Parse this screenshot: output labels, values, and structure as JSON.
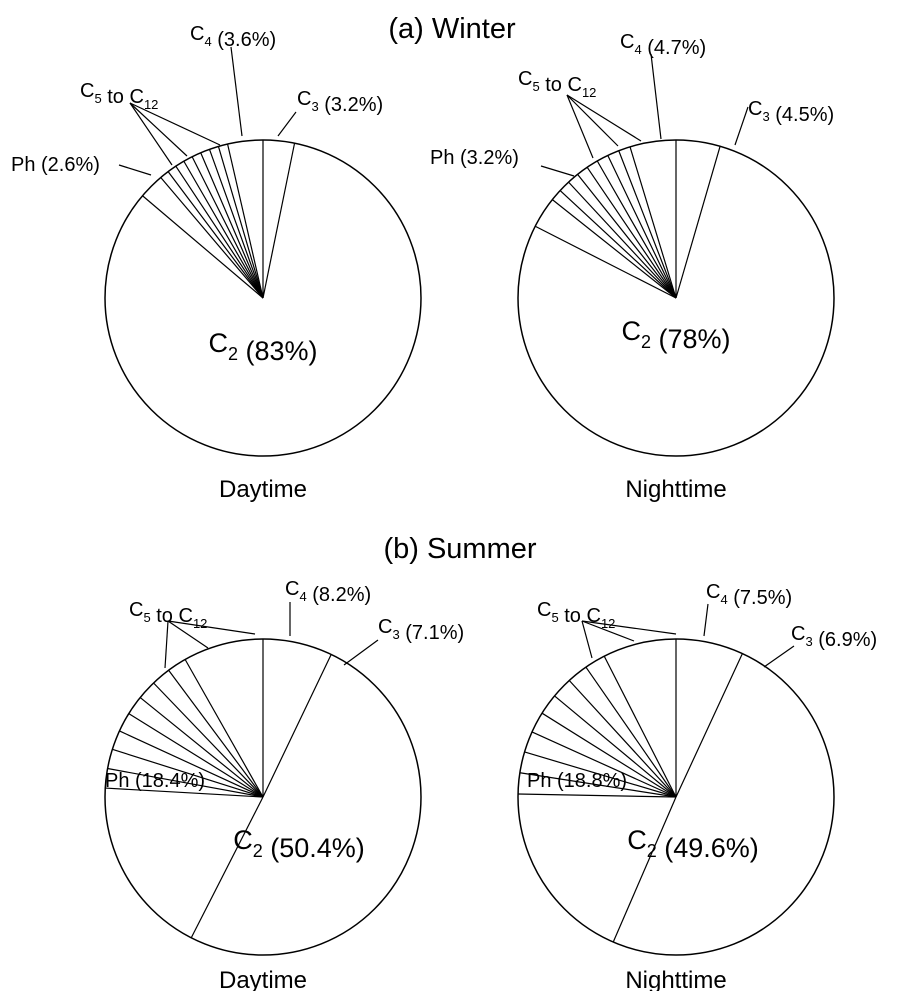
{
  "panel_titles": [
    "(a) Winter",
    "(b) Summer"
  ],
  "colors": {
    "stroke": "#000000",
    "fill": "#ffffff"
  },
  "chart_data": [
    {
      "type": "pie",
      "title": "(a) Winter",
      "subtitle": "Daytime",
      "slices": [
        {
          "label": "C2",
          "display": "C₂ (83%)",
          "value": 83.0
        },
        {
          "label": "Ph",
          "display": "Ph (2.6%)",
          "value": 2.6
        },
        {
          "label": "C5 to C12",
          "display": "C₅ to C₁₂",
          "value": 7.6,
          "subslices": 8
        },
        {
          "label": "C4",
          "display": "C₄ (3.6%)",
          "value": 3.6
        },
        {
          "label": "C3",
          "display": "C₃ (3.2%)",
          "value": 3.2
        }
      ]
    },
    {
      "type": "pie",
      "title": "(a) Winter",
      "subtitle": "Nighttime",
      "slices": [
        {
          "label": "C2",
          "display": "C₂ (78%)",
          "value": 78.0
        },
        {
          "label": "Ph",
          "display": "Ph (3.2%)",
          "value": 3.2
        },
        {
          "label": "C5 to C12",
          "display": "C₅ to C₁₂",
          "value": 9.6,
          "subslices": 8
        },
        {
          "label": "C4",
          "display": "C₄ (4.7%)",
          "value": 4.7
        },
        {
          "label": "C3",
          "display": "C₃ (4.5%)",
          "value": 4.5
        }
      ]
    },
    {
      "type": "pie",
      "title": "(b) Summer",
      "subtitle": "Daytime",
      "slices": [
        {
          "label": "C2",
          "display": "C₂ (50.4%)",
          "value": 50.4
        },
        {
          "label": "Ph",
          "display": "Ph (18.4%)",
          "value": 18.4
        },
        {
          "label": "C5 to C12",
          "display": "C₅ to C₁₂",
          "value": 15.9,
          "subslices": 8
        },
        {
          "label": "C4",
          "display": "C₄ (8.2%)",
          "value": 8.2
        },
        {
          "label": "C3",
          "display": "C₃ (7.1%)",
          "value": 7.1
        }
      ]
    },
    {
      "type": "pie",
      "title": "(b) Summer",
      "subtitle": "Nighttime",
      "slices": [
        {
          "label": "C2",
          "display": "C₂ (49.6%)",
          "value": 49.6
        },
        {
          "label": "Ph",
          "display": "Ph (18.8%)",
          "value": 18.8
        },
        {
          "label": "C5 to C12",
          "display": "C₅ to C₁₂",
          "value": 17.2,
          "subslices": 8
        },
        {
          "label": "C4",
          "display": "C₄ (7.5%)",
          "value": 7.5
        },
        {
          "label": "C3",
          "display": "C₃ (6.9%)",
          "value": 6.9
        }
      ]
    }
  ]
}
